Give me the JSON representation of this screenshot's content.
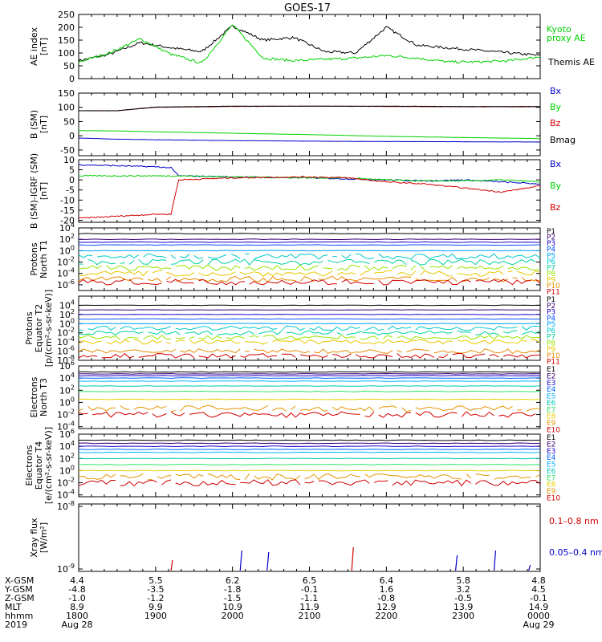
{
  "title": "GOES-17",
  "colors": {
    "black": "#000000",
    "blue": "#0000c8",
    "green": "#00d200",
    "red": "#d20000",
    "darkred": "#8b0000",
    "p_palette": [
      "#000000",
      "#3a0078",
      "#1a00c8",
      "#0050ff",
      "#00a0ff",
      "#00c8c8",
      "#00d2a0",
      "#96e600",
      "#e6c800",
      "#e68c00",
      "#d20000"
    ],
    "e_palette": [
      "#000000",
      "#3a0078",
      "#1a00c8",
      "#0064ff",
      "#00b4ff",
      "#00c8b4",
      "#32e664",
      "#e6d200",
      "#e69600",
      "#d20000",
      "#a00000"
    ]
  },
  "panels": [
    {
      "ylabel": "AE index\n[nT]",
      "ticks": [
        "250",
        "200",
        "150",
        "100",
        "50",
        "0"
      ],
      "legend": [
        {
          "text": "Kyoto\nproxy AE",
          "color": "green"
        },
        {
          "text": "Themis AE",
          "color": "black"
        }
      ]
    },
    {
      "ylabel": "B (SM)\n[nT]",
      "ticks": [
        "150",
        "100",
        "50",
        "0",
        "-50"
      ],
      "legend": [
        {
          "text": "Bx",
          "color": "blue"
        },
        {
          "text": "By",
          "color": "green"
        },
        {
          "text": "Bz",
          "color": "red"
        },
        {
          "text": "Bmag",
          "color": "black"
        }
      ]
    },
    {
      "ylabel": "B (SM)-IGRF (SM)\n[nT]",
      "ticks": [
        "10",
        "5",
        "0",
        "-5",
        "-10",
        "-15",
        "-20"
      ],
      "legend": [
        {
          "text": "Bx",
          "color": "blue"
        },
        {
          "text": "By",
          "color": "green"
        },
        {
          "text": "Bz",
          "color": "red"
        }
      ]
    },
    {
      "ylabel": "Protons\nNorth T1",
      "ticks": [
        "10^4",
        "10^2",
        "10^0",
        "10^-2",
        "10^-4",
        "10^-6"
      ],
      "legend": [
        "P1",
        "P2",
        "P3",
        "P4",
        "P5",
        "P6",
        "P7",
        "P8",
        "P9",
        "P10",
        "P11"
      ]
    },
    {
      "ylabel": "Protons\nEquator T2\n[p/(cm²-s-sr-keV)]",
      "ticks": [
        "10^4",
        "10^2",
        "10^0",
        "10^-2",
        "10^-4",
        "10^-6",
        "10^-8"
      ],
      "legend": [
        "P1",
        "P2",
        "P3",
        "P4",
        "P5",
        "P6",
        "P7",
        "P8",
        "P9",
        "P10",
        "P11"
      ]
    },
    {
      "ylabel": "Electrons\nNorth T3",
      "ticks": [
        "10^6",
        "10^4",
        "10^2",
        "10^0",
        "10^-2",
        "10^-4"
      ],
      "legend": [
        "E1",
        "E2",
        "E3",
        "E4",
        "E5",
        "E6",
        "E7",
        "E8",
        "E9",
        "E10"
      ]
    },
    {
      "ylabel": "Electrons\nEquator T4\n[e/(cm²-s-sr-keV)]",
      "ticks": [
        "10^6",
        "10^4",
        "10^2",
        "10^0",
        "10^-2",
        "10^-4"
      ],
      "legend": [
        "E1",
        "E2",
        "E3",
        "E4",
        "E5",
        "E6",
        "E7",
        "E8",
        "E9",
        "E10"
      ]
    },
    {
      "ylabel": "Xray flux\n[W/m²]",
      "ticks": [
        "10^-8",
        "10^-9"
      ],
      "legend": [
        {
          "text": "0.1–0.8 nm",
          "color": "red"
        },
        {
          "text": "0.05–0.4 nm",
          "color": "blue"
        }
      ]
    }
  ],
  "footer": {
    "labels": [
      "X-GSM",
      "Y-GSM",
      "Z-GSM",
      "MLT",
      "hhmm",
      "2019"
    ],
    "columns": [
      [
        "4.4",
        "-4.8",
        "-1.0",
        "8.9",
        "1800",
        "Aug 28"
      ],
      [
        "5.5",
        "-3.5",
        "-1.2",
        "9.9",
        "1900",
        ""
      ],
      [
        "6.2",
        "-1.8",
        "-1.5",
        "10.9",
        "2000",
        ""
      ],
      [
        "6.5",
        "-0.1",
        "-1.1",
        "11.9",
        "2100",
        ""
      ],
      [
        "6.4",
        "1.6",
        "-0.8",
        "12.9",
        "2200",
        ""
      ],
      [
        "5.8",
        "3.2",
        "-0.5",
        "13.9",
        "2300",
        ""
      ],
      [
        "4.8",
        "4.5",
        "-0.1",
        "14.9",
        "0000",
        "Aug 29"
      ]
    ]
  },
  "chart_data": [
    {
      "type": "line",
      "title": "GOES-17",
      "ylabel": "AE index [nT]",
      "ylim": [
        0,
        250
      ],
      "x_hours": [
        18.0,
        18.4,
        18.8,
        19.2,
        19.6,
        20.0,
        20.4,
        20.8,
        21.2,
        21.6,
        22.0,
        22.4,
        22.8,
        23.2,
        23.6,
        24.0
      ],
      "series": [
        {
          "name": "Themis AE",
          "values": [
            70,
            95,
            140,
            120,
            105,
            205,
            150,
            160,
            105,
            100,
            200,
            130,
            120,
            110,
            100,
            90
          ]
        },
        {
          "name": "Kyoto proxy AE",
          "values": [
            65,
            100,
            155,
            95,
            60,
            210,
            80,
            70,
            75,
            80,
            90,
            80,
            65,
            65,
            70,
            85
          ]
        }
      ]
    },
    {
      "type": "line",
      "ylabel": "B (SM) [nT]",
      "ylim": [
        -70,
        150
      ],
      "x_hours": [
        18.0,
        18.5,
        19.0,
        20.0,
        21.0,
        22.0,
        23.0,
        24.0
      ],
      "series": [
        {
          "name": "Bx",
          "values": [
            -8,
            -12,
            -14,
            -17,
            -19,
            -20,
            -21,
            -22
          ]
        },
        {
          "name": "By",
          "values": [
            18,
            17,
            14,
            9,
            4,
            -2,
            -6,
            -10
          ]
        },
        {
          "name": "Bz",
          "values": [
            88,
            88,
            100,
            103,
            104,
            103,
            102,
            102
          ]
        },
        {
          "name": "Bmag",
          "values": [
            88,
            88,
            101,
            104,
            104,
            104,
            103,
            103
          ]
        }
      ]
    },
    {
      "type": "line",
      "ylabel": "B (SM)-IGRF (SM) [nT]",
      "ylim": [
        -21,
        10
      ],
      "x_hours": [
        18.0,
        18.5,
        19.0,
        19.2,
        19.3,
        20.0,
        21.0,
        21.5,
        22.0,
        22.5,
        23.0,
        23.5,
        24.0
      ],
      "series": [
        {
          "name": "Bx",
          "values": [
            7.5,
            7,
            6.5,
            6,
            2,
            1.5,
            1,
            0.5,
            0,
            -0.5,
            0,
            -1,
            -2
          ]
        },
        {
          "name": "By",
          "values": [
            2,
            2,
            2,
            2,
            2,
            1.5,
            1,
            1,
            0,
            -0.5,
            -0.5,
            0,
            -1
          ]
        },
        {
          "name": "Bz",
          "values": [
            -19,
            -18,
            -17,
            -17,
            0,
            1,
            1.5,
            1,
            -1,
            -2,
            -4,
            -6,
            -3
          ]
        }
      ]
    },
    {
      "type": "line",
      "ylabel": "Protons North T1",
      "yscale": "log",
      "ylim": [
        1e-06,
        10000.0
      ],
      "series_log10": [
        3,
        2,
        1.5,
        1,
        0,
        -1,
        -2,
        -3,
        -4,
        -5,
        -5.5
      ]
    },
    {
      "type": "line",
      "ylabel": "Protons Equator T2 [p/(cm²-s-sr-keV)]",
      "yscale": "log",
      "ylim": [
        1e-08,
        1000000.0
      ],
      "series_log10": [
        4,
        3,
        2,
        1,
        0,
        -1,
        -2,
        -3,
        -4,
        -6,
        -7
      ]
    },
    {
      "type": "line",
      "ylabel": "Electrons North T3",
      "yscale": "log",
      "ylim": [
        0.0001,
        1000000.0
      ],
      "series_log10": [
        5,
        4.7,
        4.4,
        4,
        3.5,
        2.7,
        1.8,
        0.5,
        -1,
        -2
      ]
    },
    {
      "type": "line",
      "ylabel": "Electrons Equator T4 [e/(cm²-s-sr-keV)]",
      "yscale": "log",
      "ylim": [
        0.0001,
        1000000.0
      ],
      "series_log10": [
        5,
        4.5,
        4,
        3.5,
        3,
        2,
        1,
        0,
        -1,
        -2
      ]
    },
    {
      "type": "line",
      "ylabel": "Xray flux [W/m²]",
      "yscale": "log",
      "ylim": [
        1e-09,
        1e-08
      ],
      "spikes": [
        {
          "hour": 19.2,
          "color": "red"
        },
        {
          "hour": 20.1,
          "color": "blue"
        },
        {
          "hour": 20.45,
          "color": "blue"
        },
        {
          "hour": 21.55,
          "color": "red"
        },
        {
          "hour": 22.9,
          "color": "blue"
        },
        {
          "hour": 23.4,
          "color": "blue"
        },
        {
          "hour": 23.85,
          "color": "blue"
        }
      ]
    }
  ]
}
